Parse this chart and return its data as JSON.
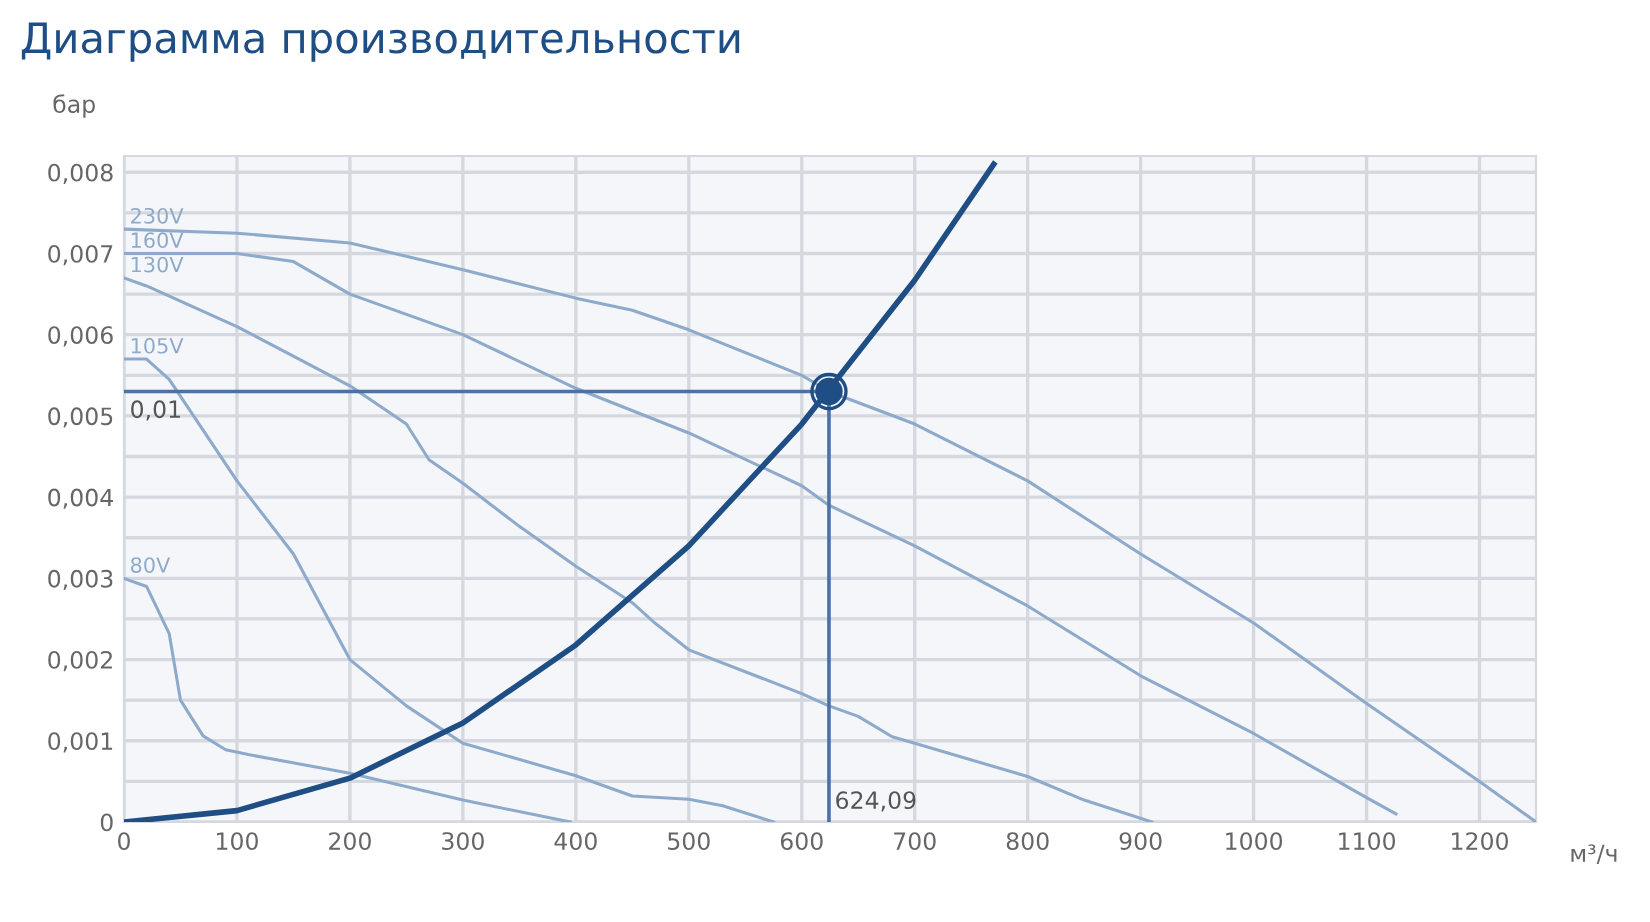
{
  "chart_data": {
    "type": "line",
    "title": "Диаграмма производительности",
    "xlabel": "м³/ч",
    "ylabel": "бар",
    "xlim": [
      0,
      1250
    ],
    "xticks": [
      0,
      100,
      200,
      300,
      400,
      500,
      600,
      700,
      800,
      900,
      1000,
      1100,
      1200
    ],
    "ylim": [
      0,
      0.0082
    ],
    "yticks": [
      {
        "value": 0,
        "label": "0"
      },
      {
        "value": 0.0005,
        "label": null
      },
      {
        "value": 0.001,
        "label": "0,001"
      },
      {
        "value": 0.0015,
        "label": null
      },
      {
        "value": 0.002,
        "label": "0,002"
      },
      {
        "value": 0.0025,
        "label": null
      },
      {
        "value": 0.003,
        "label": "0,003"
      },
      {
        "value": 0.0035,
        "label": null
      },
      {
        "value": 0.004,
        "label": "0,004"
      },
      {
        "value": 0.0045,
        "label": null
      },
      {
        "value": 0.005,
        "label": "0,005"
      },
      {
        "value": 0.0055,
        "label": null
      },
      {
        "value": 0.006,
        "label": "0,006"
      },
      {
        "value": 0.0065,
        "label": null
      },
      {
        "value": 0.007,
        "label": "0,007"
      },
      {
        "value": 0.0075,
        "label": null
      },
      {
        "value": 0.008,
        "label": "0,008"
      }
    ],
    "grid": true,
    "legend": false,
    "marker": "none",
    "line_style": "solid",
    "series": [
      {
        "name": "230V",
        "color": "#8eaacb",
        "x": [
          0,
          100,
          200,
          300,
          400,
          450,
          500,
          600,
          624,
          700,
          800,
          900,
          1000,
          1100,
          1200,
          1250
        ],
        "values": [
          0.0073,
          0.00725,
          0.00713,
          0.0068,
          0.00645,
          0.0063,
          0.00606,
          0.0055,
          0.0053,
          0.0049,
          0.0042,
          0.0033,
          0.00245,
          0.00146,
          0.0005,
          0
        ]
      },
      {
        "name": "160V",
        "color": "#8eaacb",
        "x": [
          0,
          100,
          150,
          200,
          300,
          400,
          500,
          600,
          624,
          700,
          800,
          900,
          1000,
          1100,
          1126
        ],
        "values": [
          0.007,
          0.007,
          0.0069,
          0.0065,
          0.006,
          0.00534,
          0.00479,
          0.00414,
          0.0039,
          0.0034,
          0.00266,
          0.0018,
          0.00109,
          0.0003,
          0.0001
        ]
      },
      {
        "name": "130V",
        "color": "#8eaacb",
        "x": [
          0,
          20,
          100,
          200,
          250,
          270,
          300,
          350,
          400,
          450,
          470,
          500,
          600,
          624,
          650,
          680,
          700,
          800,
          850,
          910
        ],
        "values": [
          0.0067,
          0.0066,
          0.0061,
          0.00537,
          0.0049,
          0.00446,
          0.00417,
          0.00364,
          0.00315,
          0.0027,
          0.00245,
          0.00212,
          0.00158,
          0.00143,
          0.0013,
          0.00105,
          0.00097,
          0.00056,
          0.00027,
          0
        ]
      },
      {
        "name": "105V",
        "color": "#8eaacb",
        "x": [
          0,
          20,
          40,
          100,
          150,
          200,
          250,
          300,
          400,
          450,
          500,
          530,
          575
        ],
        "values": [
          0.0057,
          0.0057,
          0.00545,
          0.0042,
          0.0033,
          0.002,
          0.00143,
          0.00097,
          0.00057,
          0.00032,
          0.00028,
          0.0002,
          0
        ]
      },
      {
        "name": "80V",
        "color": "#8eaacb",
        "x": [
          0,
          20,
          40,
          50,
          70,
          90,
          110,
          200,
          300,
          395
        ],
        "values": [
          0.003,
          0.0029,
          0.00232,
          0.0015,
          0.00106,
          0.00089,
          0.00083,
          0.0006,
          0.00027,
          0
        ]
      },
      {
        "color": "#1f4e85",
        "x": [
          0,
          100,
          200,
          300,
          400,
          500,
          600,
          700,
          770
        ],
        "values": [
          0,
          0.00014,
          0.00054,
          0.00122,
          0.00218,
          0.0034,
          0.0049,
          0.00667,
          0.0081
        ]
      },
      {
        "type": "scatter",
        "marker": "circle",
        "color": "#1f4e85",
        "x": [
          624.09
        ],
        "values": [
          0.0053
        ]
      }
    ],
    "ref_lines": [
      {
        "axis": "y",
        "value": 0.0053,
        "label": "0,01",
        "color": "#4a72a6"
      },
      {
        "axis": "x",
        "value": 624.09,
        "label": "624,09",
        "color": "#4a72a6"
      }
    ]
  }
}
